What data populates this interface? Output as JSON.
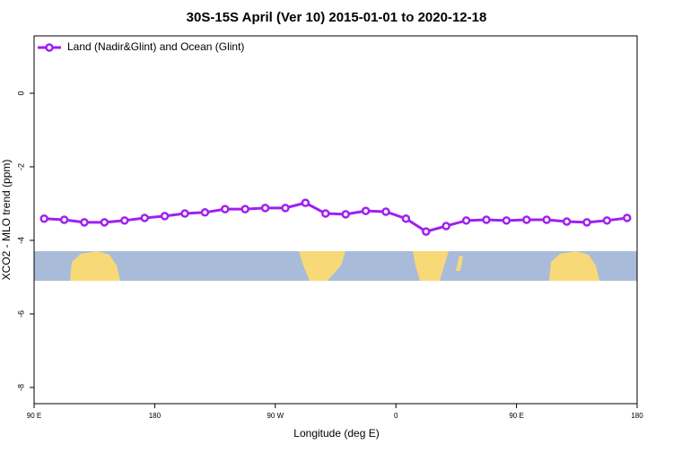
{
  "chart_data": {
    "type": "line",
    "title": "30S-15S April (Ver 10)   2015-01-01 to 2020-12-18",
    "x_label": "Longitude (deg E)",
    "y_label": "XCO2 - MLO trend (ppm)",
    "x": [
      97.5,
      112.5,
      127.5,
      142.5,
      157.5,
      172.5,
      187.5,
      202.5,
      217.5,
      232.5,
      247.5,
      262.5,
      277.5,
      292.5,
      307.5,
      322.5,
      337.5,
      352.5,
      367.5,
      382.5,
      397.5,
      412.5,
      427.5,
      442.5,
      457.5,
      472.5,
      487.5,
      502.5,
      517.5,
      532.5
    ],
    "series": [
      {
        "name": "Land (Nadir&Glint) and Ocean (Glint)",
        "color": "#a020f0",
        "values": [
          -3.41,
          -3.44,
          -3.51,
          -3.51,
          -3.46,
          -3.39,
          -3.34,
          -3.27,
          -3.24,
          -3.15,
          -3.15,
          -3.12,
          -3.12,
          -2.98,
          -3.27,
          -3.29,
          -3.2,
          -3.22,
          -3.41,
          -3.76,
          -3.61,
          -3.46,
          -3.44,
          -3.46,
          -3.44,
          -3.44,
          -3.49,
          -3.51,
          -3.46,
          -3.39
        ]
      }
    ],
    "xlim": [
      90,
      540
    ],
    "xticks": [
      {
        "value": 90,
        "label": "90 E"
      },
      {
        "value": 180,
        "label": "180"
      },
      {
        "value": 270,
        "label": "90 W"
      },
      {
        "value": 360,
        "label": "0"
      },
      {
        "value": 450,
        "label": "90 E"
      },
      {
        "value": 540,
        "label": "180"
      }
    ],
    "ylim": [
      -8.44,
      1.56
    ],
    "yticks": [
      0,
      -2,
      -4,
      -6,
      -8
    ],
    "legend": "top-left"
  }
}
